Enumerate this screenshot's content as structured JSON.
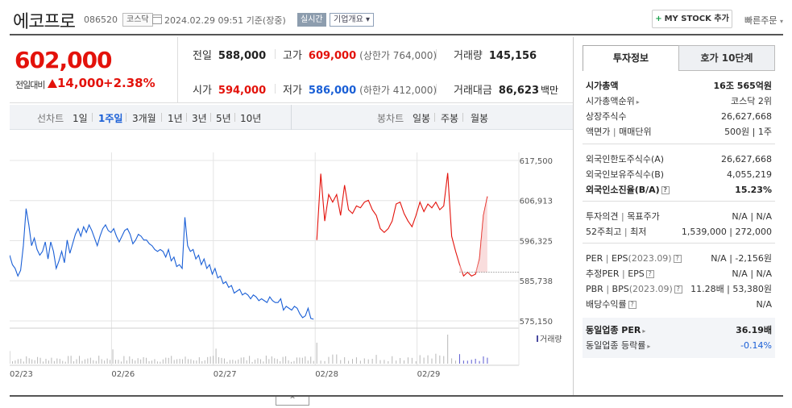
{
  "header": {
    "stock_name": "에코프로",
    "stock_code": "086520",
    "market_badge": "코스닥",
    "timestamp": "2024.02.29 09:51 기준(장중)",
    "realtime_badge": "실시간",
    "overview_badge": "기업개요",
    "mystock_label": "MY STOCK 추가",
    "quick_order_label": "빠른주문"
  },
  "price": {
    "current": "602,000",
    "change_label": "전일대비",
    "change_value": "14,000",
    "change_rate": "+2.38%"
  },
  "stats": {
    "prev_close_label": "전일",
    "prev_close": "588,000",
    "high_label": "고가",
    "high": "609,000",
    "upper_limit": "(상한가 764,000)",
    "volume_label": "거래량",
    "volume": "145,156",
    "open_label": "시가",
    "open": "594,000",
    "low_label": "저가",
    "low": "586,000",
    "lower_limit": "(하한가 412,000)",
    "amount_label": "거래대금",
    "amount": "86,623",
    "amount_unit": "백만"
  },
  "toolbar": {
    "line_chart_label": "선차트",
    "periods": [
      "1일",
      "1주일",
      "3개월",
      "1년",
      "3년",
      "5년",
      "10년"
    ],
    "active_period": "1주일",
    "candle_chart_label": "봉차트",
    "candle_periods": [
      "일봉",
      "주봉",
      "월봉"
    ]
  },
  "chart_data": {
    "type": "line",
    "title": "",
    "x_ticks": [
      "02/23",
      "02/26",
      "02/27",
      "02/28",
      "02/29"
    ],
    "y_ticks": [
      617500,
      606913,
      596325,
      585738,
      575150
    ],
    "ylim": [
      575150,
      617500
    ],
    "volume_label": "거래량",
    "prev_close_line": 588000,
    "series": [
      {
        "color": "#1a5fd6",
        "values": [
          592500,
          590000,
          589000,
          587000,
          588500,
          595000,
          604800,
          600500,
          595000,
          597000,
          594000,
          592500,
          593500,
          596000,
          591500,
          596000,
          593500,
          589000,
          591000,
          593500,
          590500,
          596500,
          593000,
          595500,
          598000,
          599500,
          597500,
          600000,
          598500,
          600500,
          599000,
          597000,
          595000,
          597500,
          599500,
          600500,
          599000,
          598500,
          599500,
          597500,
          596000,
          597500,
          599000,
          599500,
          598000,
          595500,
          596500,
          598000,
          597500,
          596500,
          596500,
          595500,
          595000,
          594000,
          593500,
          594000,
          593500,
          592000,
          594000,
          591000,
          592000,
          589500,
          590000,
          589000,
          602500,
          595000,
          593500,
          594000,
          591500,
          592500,
          590000,
          591500,
          589000,
          590000,
          587500,
          589000,
          586500,
          587000,
          585000,
          585500,
          584000,
          584500,
          582500,
          583000,
          583500,
          582000,
          582500,
          582000,
          581000,
          582000,
          581500,
          580500,
          581000,
          580500,
          580000,
          581500,
          580500,
          580000,
          580000,
          581000,
          578000,
          579000,
          578500,
          578000,
          579000,
          578500,
          577000,
          576000,
          576500,
          578500,
          575800,
          575600
        ]
      },
      {
        "color": "#e3120b",
        "values": [
          596500,
          614000,
          601500,
          608500,
          606500,
          608500,
          603000,
          611000,
          604500,
          603500,
          605500,
          605000,
          606500,
          607000,
          604500,
          603000,
          599500,
          598500,
          599500,
          601500,
          606000,
          606500,
          603500,
          601500,
          600000,
          603000,
          606500,
          604000,
          606000,
          605000,
          606500,
          604500,
          605500,
          614200,
          597500,
          593500,
          590000,
          587000,
          588000,
          587000,
          587500,
          591500,
          603000,
          608000
        ]
      }
    ]
  },
  "right_panel": {
    "tab_active": "투자정보",
    "tab_inactive": "호가 10단계",
    "market_cap_label": "시가총액",
    "market_cap": "16조 565억원",
    "cap_rank_label": "시가총액순위",
    "cap_rank": "코스닥 2위",
    "shares_label": "상장주식수",
    "shares": "26,627,668",
    "par_label": "액면가",
    "lot_label": "매매단위",
    "par_lot": "500원 | 1주",
    "foreign_limit_label": "외국인한도주식수(A)",
    "foreign_limit": "26,627,668",
    "foreign_hold_label": "외국인보유주식수(B)",
    "foreign_hold": "4,055,219",
    "foreign_ratio_label": "외국인소진율(B/A)",
    "foreign_ratio": "15.23%",
    "opinion_label": "투자의견",
    "target_label": "목표주가",
    "opinion_target": "N/A | N/A",
    "week52_label": "52주최고",
    "low52_label": "최저",
    "week52": "1,539,000 | 272,000",
    "per_label": "PER",
    "eps_label": "EPS",
    "per_period": "(2023.09)",
    "per_eps": "N/A | -2,156원",
    "est_per_label": "추정PER",
    "est_eps_label": "EPS",
    "est_per_eps": "N/A | N/A",
    "pbr_label": "PBR",
    "bps_label": "BPS",
    "bps_period": "(2023.09)",
    "pbr_bps": "11.28배 | 53,380원",
    "dividend_label": "배당수익률",
    "dividend": "N/A",
    "sector_per_label": "동일업종 PER",
    "sector_per": "36.19배",
    "sector_change_label": "동일업종 등락률",
    "sector_change": "-0.14%"
  }
}
